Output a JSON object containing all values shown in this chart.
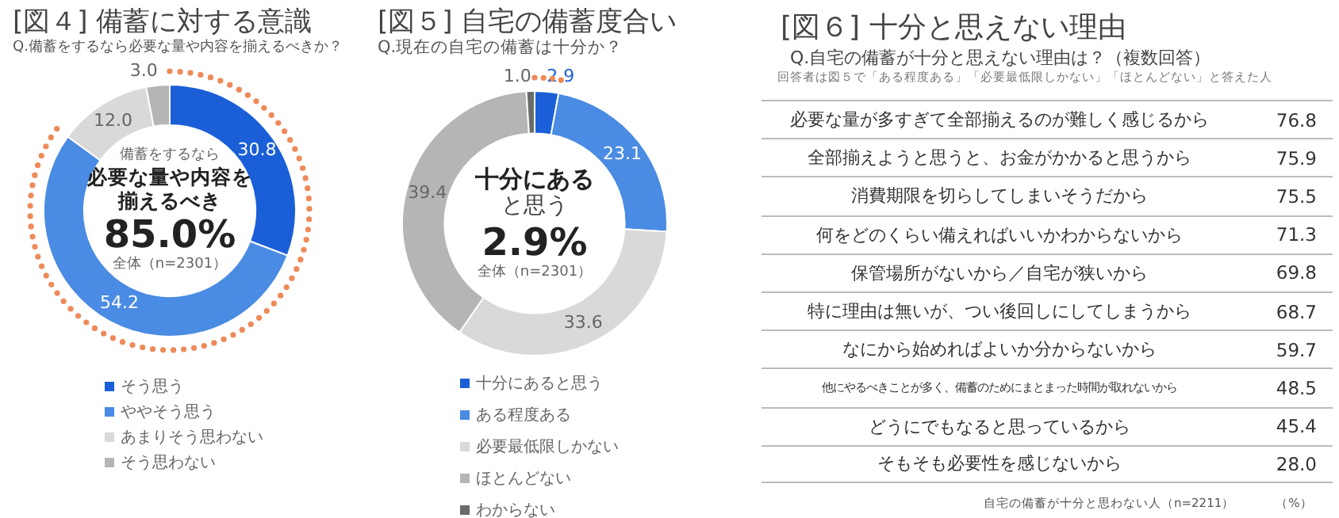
{
  "chart_data": [
    {
      "type": "donut",
      "title": "[図４] 備蓄に対する意識",
      "subtitle": "Q.備蓄をするなら必要な量や内容を揃えるべきか？",
      "categories": [
        "そう思う",
        "ややそう思う",
        "あまりそう思わない",
        "そう思わない"
      ],
      "values": [
        30.8,
        54.2,
        12.0,
        3.0
      ],
      "value_labels": [
        "30.8",
        "54.2",
        "12.0",
        "3.0"
      ],
      "colors": [
        "#1a5fd8",
        "#4a8be3",
        "#d9d9d9",
        "#b5b5b5"
      ],
      "legend": "bottom",
      "annotations": [
        "備蓄をするなら",
        "必要な量や内容を",
        "揃えるべき",
        "85.0%",
        "全体（n=2301）"
      ]
    },
    {
      "type": "donut",
      "title": "[図５] 自宅の備蓄度合い",
      "subtitle": "Q.現在の自宅の備蓄は十分か？",
      "categories": [
        "十分にあると思う",
        "ある程度ある",
        "必要最低限しかない",
        "ほとんどない",
        "わからない"
      ],
      "values": [
        2.9,
        23.1,
        33.6,
        39.4,
        1.0
      ],
      "value_labels": [
        "2.9",
        "23.1",
        "33.6",
        "39.4",
        "1.0"
      ],
      "colors": [
        "#1a5fd8",
        "#4a8be3",
        "#d9d9d9",
        "#b5b5b5",
        "#6b6b6b"
      ],
      "legend": "bottom",
      "annotations": [
        "十分にある",
        "と思う",
        "2.9%",
        "全体（n=2301）"
      ]
    },
    {
      "type": "other",
      "title": "[図６] 十分と思えない理由",
      "subtitle": "Q.自宅の備蓄が十分と思えない理由は？（複数回答）",
      "categories": [
        "必要な量が多すぎて全部揃えるのが難しく感じるから",
        "全部揃えようと思うと、お金がかかると思うから",
        "消費期限を切らしてしまいそうだから",
        "何をどのくらい備えればいいかわからないから",
        "保管場所がないから／自宅が狭いから",
        "特に理由は無いが、つい後回しにしてしまうから",
        "なにから始めればよいか分からないから",
        "他にやるべきことが多く、備蓄のためにまとまった時間が取れないから",
        "どうにでもなると思っているから",
        "そもそも必要性を感じないから"
      ],
      "values": [
        76.8,
        75.9,
        75.5,
        71.3,
        69.8,
        68.7,
        59.7,
        48.5,
        45.4,
        28.0
      ],
      "value_labels": [
        "76.8",
        "75.9",
        "75.5",
        "71.3",
        "69.8",
        "68.7",
        "59.7",
        "48.5",
        "45.4",
        "28.0"
      ],
      "annotations": [
        "回答者は図５で「ある程度ある」「必要最低限しかない」「ほとんどない」と答えた人",
        "自宅の備蓄が十分と思わない人（n=2211）",
        "（%）"
      ]
    }
  ]
}
